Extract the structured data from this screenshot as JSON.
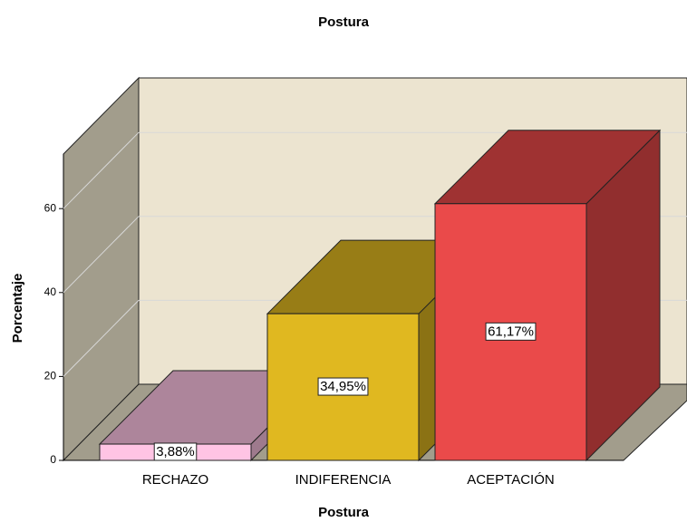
{
  "chart_data": {
    "type": "bar3d",
    "title": "Postura",
    "x_label": "Postura",
    "y_label": "Porcentaje",
    "categories": [
      "RECHAZO",
      "INDIFERENCIA",
      "ACEPTACIÓN"
    ],
    "values": [
      3.88,
      34.95,
      61.17
    ],
    "value_labels": [
      "3,88%",
      "34,95%",
      "61,17%"
    ],
    "colors": [
      "#ffc4e4",
      "#e0b820",
      "#ea4a4a"
    ],
    "ylim": [
      0,
      73
    ],
    "yticks": [
      0,
      20,
      40,
      60
    ],
    "grid": true
  }
}
